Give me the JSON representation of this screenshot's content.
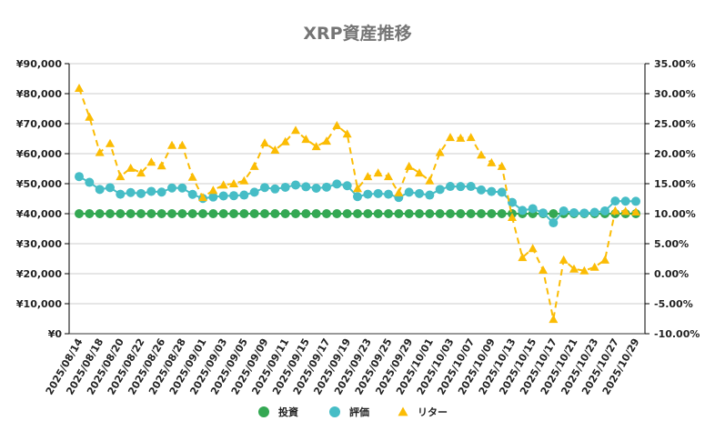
{
  "chart_data": {
    "type": "line",
    "title": "XRP資産推移",
    "y_left": {
      "ylim": [
        0,
        90000
      ],
      "ticks": [
        "¥0",
        "¥10,000",
        "¥20,000",
        "¥30,000",
        "¥40,000",
        "¥50,000",
        "¥60,000",
        "¥70,000",
        "¥80,000",
        "¥90,000"
      ]
    },
    "y_right": {
      "ylim": [
        -10,
        35
      ],
      "ticks": [
        "-10.00%",
        "-5.00%",
        "0.00%",
        "5.00%",
        "10.00%",
        "15.00%",
        "20.00%",
        "25.00%",
        "30.00%",
        "35.00%"
      ]
    },
    "grid": true,
    "legend_position": "bottom",
    "x": [
      "2025/08/14",
      "2025/08/15",
      "2025/08/18",
      "2025/08/19",
      "2025/08/20",
      "2025/08/21",
      "2025/08/22",
      "2025/08/25",
      "2025/08/26",
      "2025/08/27",
      "2025/08/28",
      "2025/08/29",
      "2025/09/01",
      "2025/09/02",
      "2025/09/03",
      "2025/09/04",
      "2025/09/05",
      "2025/09/08",
      "2025/09/09",
      "2025/09/10",
      "2025/09/11",
      "2025/09/12",
      "2025/09/15",
      "2025/09/16",
      "2025/09/17",
      "2025/09/18",
      "2025/09/19",
      "2025/09/22",
      "2025/09/23",
      "2025/09/24",
      "2025/09/25",
      "2025/09/26",
      "2025/09/29",
      "2025/09/30",
      "2025/10/01",
      "2025/10/02",
      "2025/10/03",
      "2025/10/06",
      "2025/10/07",
      "2025/10/08",
      "2025/10/09",
      "2025/10/10",
      "2025/10/13",
      "2025/10/14",
      "2025/10/15",
      "2025/10/16",
      "2025/10/17",
      "2025/10/20",
      "2025/10/21",
      "2025/10/22",
      "2025/10/23",
      "2025/10/24",
      "2025/10/27",
      "2025/10/28",
      "2025/10/29"
    ],
    "x_label_every": 2,
    "series": [
      {
        "name": "投資",
        "axis": "left",
        "color": "#34a853",
        "marker": "circle",
        "style": "solid",
        "values": [
          40000,
          40000,
          40000,
          40000,
          40000,
          40000,
          40000,
          40000,
          40000,
          40000,
          40000,
          40000,
          40000,
          40000,
          40000,
          40000,
          40000,
          40000,
          40000,
          40000,
          40000,
          40000,
          40000,
          40000,
          40000,
          40000,
          40000,
          40000,
          40000,
          40000,
          40000,
          40000,
          40000,
          40000,
          40000,
          40000,
          40000,
          40000,
          40000,
          40000,
          40000,
          40000,
          40000,
          40000,
          40000,
          40000,
          40000,
          40000,
          40000,
          40000,
          40000,
          40000,
          40000,
          40000,
          40000
        ]
      },
      {
        "name": "評価",
        "axis": "left",
        "color": "#46bdc6",
        "marker": "circle",
        "style": "solid",
        "values": [
          52360,
          50440,
          48080,
          48680,
          46480,
          47040,
          46720,
          47440,
          47200,
          48560,
          48560,
          46440,
          45080,
          45560,
          45920,
          46000,
          46200,
          47160,
          48720,
          48240,
          48800,
          49560,
          48960,
          48480,
          48840,
          49880,
          49320,
          45680,
          46480,
          46720,
          46480,
          45400,
          47160,
          46720,
          46200,
          48080,
          49080,
          49040,
          49080,
          47920,
          47400,
          47160,
          43760,
          41080,
          41680,
          40240,
          36960,
          40920,
          40320,
          40200,
          40440,
          40920,
          44200,
          44160,
          44120
        ]
      },
      {
        "name": "リター",
        "axis": "right",
        "color": "#fbbc04",
        "marker": "triangle",
        "style": "dashed",
        "values": [
          30.9,
          26.1,
          20.2,
          21.7,
          16.2,
          17.6,
          16.8,
          18.6,
          18.0,
          21.4,
          21.4,
          16.1,
          12.7,
          13.9,
          14.8,
          15.0,
          15.5,
          17.9,
          21.8,
          20.6,
          22.0,
          23.9,
          22.4,
          21.2,
          22.1,
          24.7,
          23.3,
          14.2,
          16.2,
          16.8,
          16.2,
          13.5,
          17.9,
          16.8,
          15.5,
          20.2,
          22.7,
          22.6,
          22.7,
          19.8,
          18.5,
          17.9,
          9.4,
          2.7,
          4.2,
          0.6,
          -7.6,
          2.3,
          0.8,
          0.5,
          1.1,
          2.3,
          10.5,
          10.4,
          10.3
        ]
      }
    ]
  }
}
